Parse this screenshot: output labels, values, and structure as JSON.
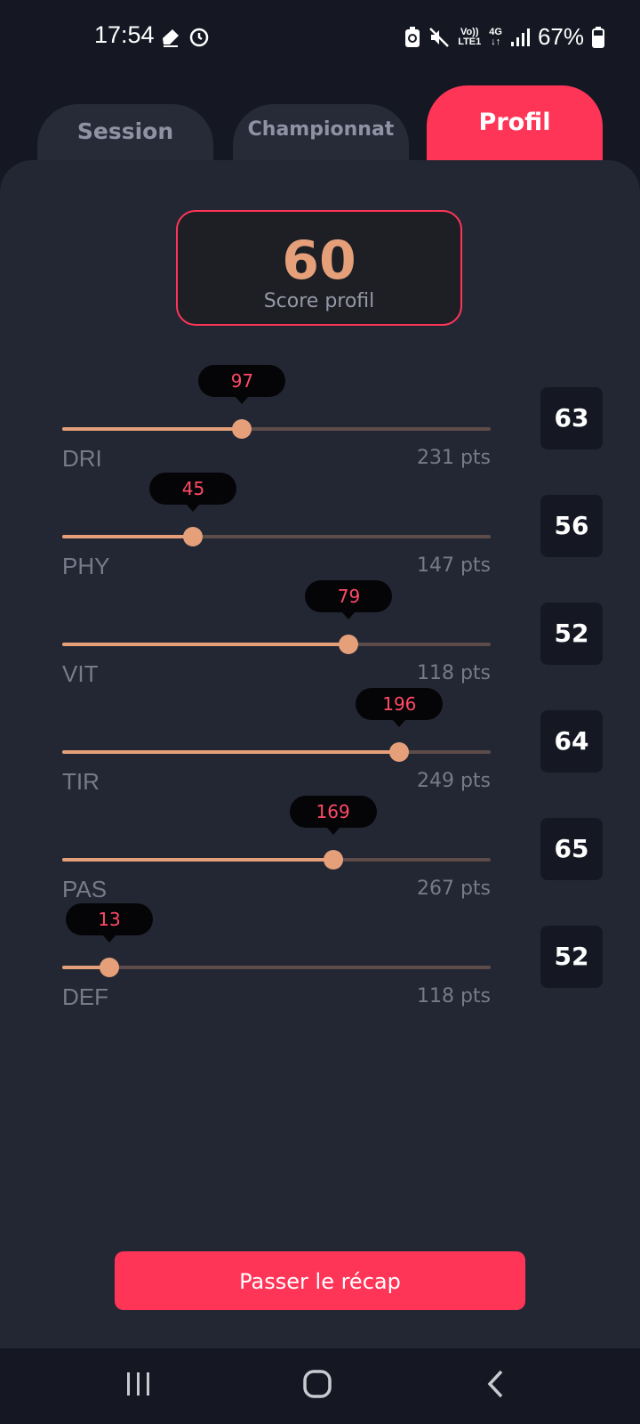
{
  "status_bar": {
    "time": "17:54",
    "network_top": "Vo))",
    "network_bottom": "LTE1",
    "data_top": "4G",
    "battery": "67%"
  },
  "tabs": [
    {
      "label": "Session",
      "active": false
    },
    {
      "label": "Championnat",
      "active": false
    },
    {
      "label": "Profil",
      "active": true
    }
  ],
  "score": {
    "value": "60",
    "label": "Score profil"
  },
  "stats": [
    {
      "name": "DRI",
      "bubble": "97",
      "points": "231 pts",
      "rating": "63",
      "fraction": 0.42
    },
    {
      "name": "PHY",
      "bubble": "45",
      "points": "147 pts",
      "rating": "56",
      "fraction": 0.306
    },
    {
      "name": "VIT",
      "bubble": "79",
      "points": "118 pts",
      "rating": "52",
      "fraction": 0.669
    },
    {
      "name": "TIR",
      "bubble": "196",
      "points": "249 pts",
      "rating": "64",
      "fraction": 0.787
    },
    {
      "name": "PAS",
      "bubble": "169",
      "points": "267 pts",
      "rating": "65",
      "fraction": 0.632
    },
    {
      "name": "DEF",
      "bubble": "13",
      "points": "118 pts",
      "rating": "52",
      "fraction": 0.11
    }
  ],
  "cta": {
    "label": "Passer le récap"
  },
  "colors": {
    "accent": "#ff3558",
    "score": "#e5a07a",
    "slider": "#e5a07a"
  }
}
